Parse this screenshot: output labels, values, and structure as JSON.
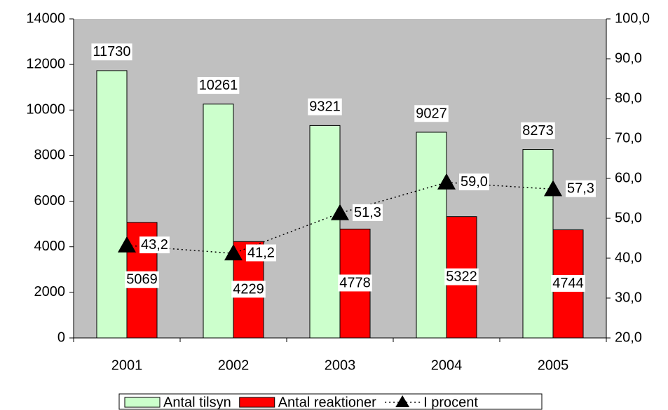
{
  "chart_data": {
    "type": "bar",
    "categories": [
      "2001",
      "2002",
      "2003",
      "2004",
      "2005"
    ],
    "series": [
      {
        "name": "Antal tilsyn",
        "type": "bar",
        "color": "#ccffcc",
        "values": [
          11730,
          10261,
          9321,
          9027,
          8273
        ]
      },
      {
        "name": "Antal reaktioner",
        "type": "bar",
        "color": "#ff0000",
        "values": [
          5069,
          4229,
          4778,
          5322,
          4744
        ]
      },
      {
        "name": "I procent",
        "type": "line",
        "axis": "y2",
        "color": "#000000",
        "values": [
          43.2,
          41.2,
          51.3,
          59.0,
          57.3
        ],
        "value_labels": [
          "43,2",
          "41,2",
          "51,3",
          "59,0",
          "57,3"
        ]
      }
    ],
    "ylim": [
      0,
      14000
    ],
    "yticks": [
      0,
      2000,
      4000,
      6000,
      8000,
      10000,
      12000,
      14000
    ],
    "y2lim": [
      20,
      100
    ],
    "y2ticks": [
      {
        "value": 20,
        "label": "20,0"
      },
      {
        "value": 30,
        "label": "30,0"
      },
      {
        "value": 40,
        "label": "40,0"
      },
      {
        "value": 50,
        "label": "50,0"
      },
      {
        "value": 60,
        "label": "60,0"
      },
      {
        "value": 70,
        "label": "70,0"
      },
      {
        "value": 80,
        "label": "80,0"
      },
      {
        "value": 90,
        "label": "90,0"
      },
      {
        "value": 100,
        "label": "100,0"
      }
    ],
    "legend": "bottom",
    "background": "#c0c0c0"
  }
}
